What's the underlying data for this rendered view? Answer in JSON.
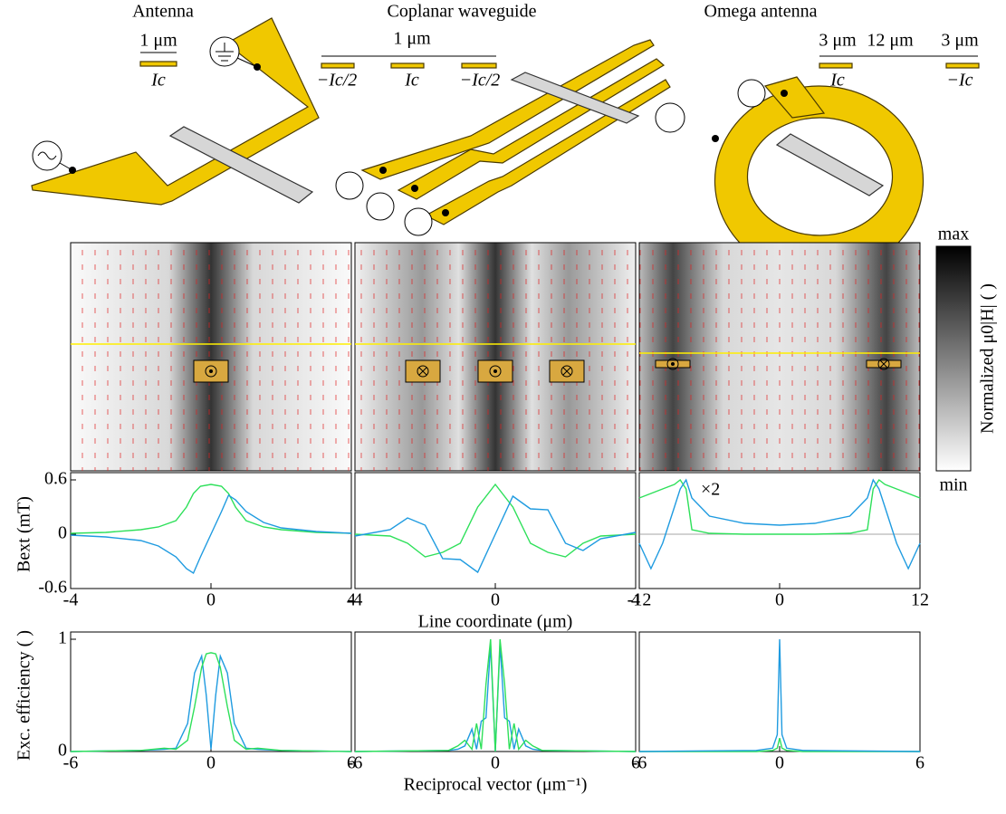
{
  "diagrams": [
    {
      "title": "Antenna",
      "labels": [
        "1 μm",
        "Ic"
      ]
    },
    {
      "title": "Coplanar waveguide",
      "labels": [
        "1 μm",
        "−Ic/2",
        "Ic",
        "−Ic/2"
      ]
    },
    {
      "title": "Omega antenna",
      "labels": [
        "3 μm",
        "12 μm",
        "3 μm",
        "Ic",
        "−Ic"
      ]
    }
  ],
  "colorbar": {
    "max": "max",
    "min": "min",
    "label": "Normalized μ0|H| ( )"
  },
  "chart_data": [
    {
      "type": "line",
      "ylabel": "Bext (mT)",
      "xlim": [
        -4,
        4
      ],
      "xticks": [
        -4,
        0,
        4
      ],
      "ylim": [
        -0.6,
        0.6
      ],
      "yticks": [
        -0.6,
        0,
        0.6
      ],
      "x": [
        -4,
        -3,
        -2,
        -1.5,
        -1,
        -0.7,
        -0.5,
        -0.3,
        0,
        0.3,
        0.5,
        0.7,
        1,
        1.5,
        2,
        3,
        4
      ],
      "series": [
        {
          "color": "#2ee05a",
          "values": [
            0.01,
            0.02,
            0.05,
            0.08,
            0.15,
            0.3,
            0.45,
            0.53,
            0.55,
            0.53,
            0.45,
            0.3,
            0.15,
            0.08,
            0.05,
            0.02,
            0.01
          ]
        },
        {
          "color": "#1f9be0",
          "values": [
            -0.01,
            -0.03,
            -0.07,
            -0.13,
            -0.25,
            -0.38,
            -0.43,
            -0.25,
            0,
            0.25,
            0.43,
            0.38,
            0.25,
            0.13,
            0.07,
            0.03,
            0.01
          ]
        }
      ]
    },
    {
      "type": "line",
      "xlabel": "Line coordinate (μm)",
      "xlim": [
        -4,
        4
      ],
      "xticks": [
        -4,
        0,
        4
      ],
      "ylim": [
        -0.6,
        0.6
      ],
      "x": [
        -4,
        -3,
        -2.5,
        -2,
        -1.5,
        -1,
        -0.5,
        0,
        0.5,
        1,
        1.5,
        2,
        2.5,
        3,
        4
      ],
      "series": [
        {
          "color": "#2ee05a",
          "values": [
            0,
            -0.02,
            -0.1,
            -0.25,
            -0.2,
            -0.1,
            0.3,
            0.55,
            0.3,
            -0.1,
            -0.2,
            -0.25,
            -0.1,
            -0.02,
            0
          ]
        },
        {
          "color": "#1f9be0",
          "values": [
            -0.02,
            0.05,
            0.18,
            0.1,
            -0.27,
            -0.28,
            -0.42,
            0,
            0.42,
            0.28,
            0.27,
            -0.1,
            -0.18,
            -0.05,
            0.02
          ]
        }
      ]
    },
    {
      "type": "line",
      "annotation": "×2",
      "zero_line": true,
      "xlim": [
        -12,
        12
      ],
      "xticks": [
        -12,
        0,
        12
      ],
      "ylim": [
        -0.6,
        0.6
      ],
      "x": [
        -12,
        -11,
        -10,
        -9,
        -8.5,
        -8,
        -7.5,
        -6,
        -3,
        0,
        3,
        6,
        7.5,
        8,
        8.5,
        9,
        10,
        11,
        12
      ],
      "series": [
        {
          "color": "#2ee05a",
          "values": [
            0.4,
            0.45,
            0.5,
            0.55,
            0.6,
            0.5,
            0.05,
            0.01,
            0,
            0,
            0,
            0.01,
            0.05,
            0.5,
            0.6,
            0.55,
            0.5,
            0.45,
            0.4
          ]
        },
        {
          "color": "#1f9be0",
          "values": [
            -0.1,
            -0.38,
            -0.1,
            0.3,
            0.5,
            0.6,
            0.4,
            0.2,
            0.12,
            0.1,
            0.12,
            0.2,
            0.4,
            0.6,
            0.5,
            0.3,
            -0.1,
            -0.38,
            -0.1
          ]
        }
      ]
    },
    {
      "type": "line",
      "ylabel": "Exc. efficiency ( )",
      "ytick_color": "#1a1a80",
      "xlim": [
        -6,
        6
      ],
      "xticks": [
        -6,
        0,
        6
      ],
      "ylim": [
        0,
        1
      ],
      "yticks": [
        0,
        1
      ],
      "x": [
        -6,
        -3,
        -2,
        -1.5,
        -1,
        -0.7,
        -0.4,
        -0.2,
        0,
        0.2,
        0.4,
        0.7,
        1,
        1.5,
        2,
        3,
        6
      ],
      "series": [
        {
          "color": "#1f9be0",
          "values": [
            0,
            0.01,
            0.02,
            0.03,
            0.25,
            0.7,
            0.85,
            0.5,
            0.02,
            0.5,
            0.85,
            0.7,
            0.25,
            0.03,
            0.02,
            0.01,
            0
          ]
        },
        {
          "color": "#2ee05a",
          "values": [
            0,
            0.01,
            0.03,
            0.02,
            0.1,
            0.4,
            0.75,
            0.87,
            0.88,
            0.87,
            0.75,
            0.4,
            0.1,
            0.02,
            0.03,
            0.01,
            0
          ]
        }
      ]
    },
    {
      "type": "line",
      "xlabel": "Reciprocal vector (μm⁻¹)",
      "xlim": [
        -6,
        6
      ],
      "xticks": [
        -6,
        0,
        6
      ],
      "ylim": [
        0,
        1
      ],
      "x": [
        -6,
        -2,
        -1.6,
        -1.3,
        -1,
        -0.8,
        -0.6,
        -0.4,
        -0.2,
        0,
        0.2,
        0.4,
        0.6,
        0.8,
        1,
        1.3,
        1.6,
        2,
        6
      ],
      "series": [
        {
          "color": "#1f9be0",
          "values": [
            0,
            0.01,
            0.02,
            0.05,
            0.2,
            0.02,
            0.27,
            0.3,
            0.95,
            0,
            0.95,
            0.3,
            0.27,
            0.02,
            0.2,
            0.05,
            0.02,
            0.01,
            0
          ]
        },
        {
          "color": "#2ee05a",
          "values": [
            0,
            0.01,
            0.05,
            0.1,
            0.02,
            0.25,
            0.02,
            0.6,
            1,
            0,
            1,
            0.6,
            0.02,
            0.25,
            0.02,
            0.1,
            0.05,
            0.01,
            0
          ]
        }
      ]
    },
    {
      "type": "line",
      "xlim": [
        -6,
        6
      ],
      "xticks": [
        -6,
        0,
        6
      ],
      "ylim": [
        0,
        1
      ],
      "x": [
        -6,
        -1,
        -0.3,
        -0.1,
        0,
        0.1,
        0.3,
        1,
        6
      ],
      "series": [
        {
          "color": "#2ee05a",
          "values": [
            0,
            0,
            0.01,
            0.03,
            0.12,
            0.03,
            0.01,
            0,
            0
          ]
        },
        {
          "color": "#1f9be0",
          "values": [
            0,
            0.01,
            0.03,
            0.15,
            1,
            0.15,
            0.03,
            0.01,
            0
          ]
        }
      ]
    }
  ]
}
